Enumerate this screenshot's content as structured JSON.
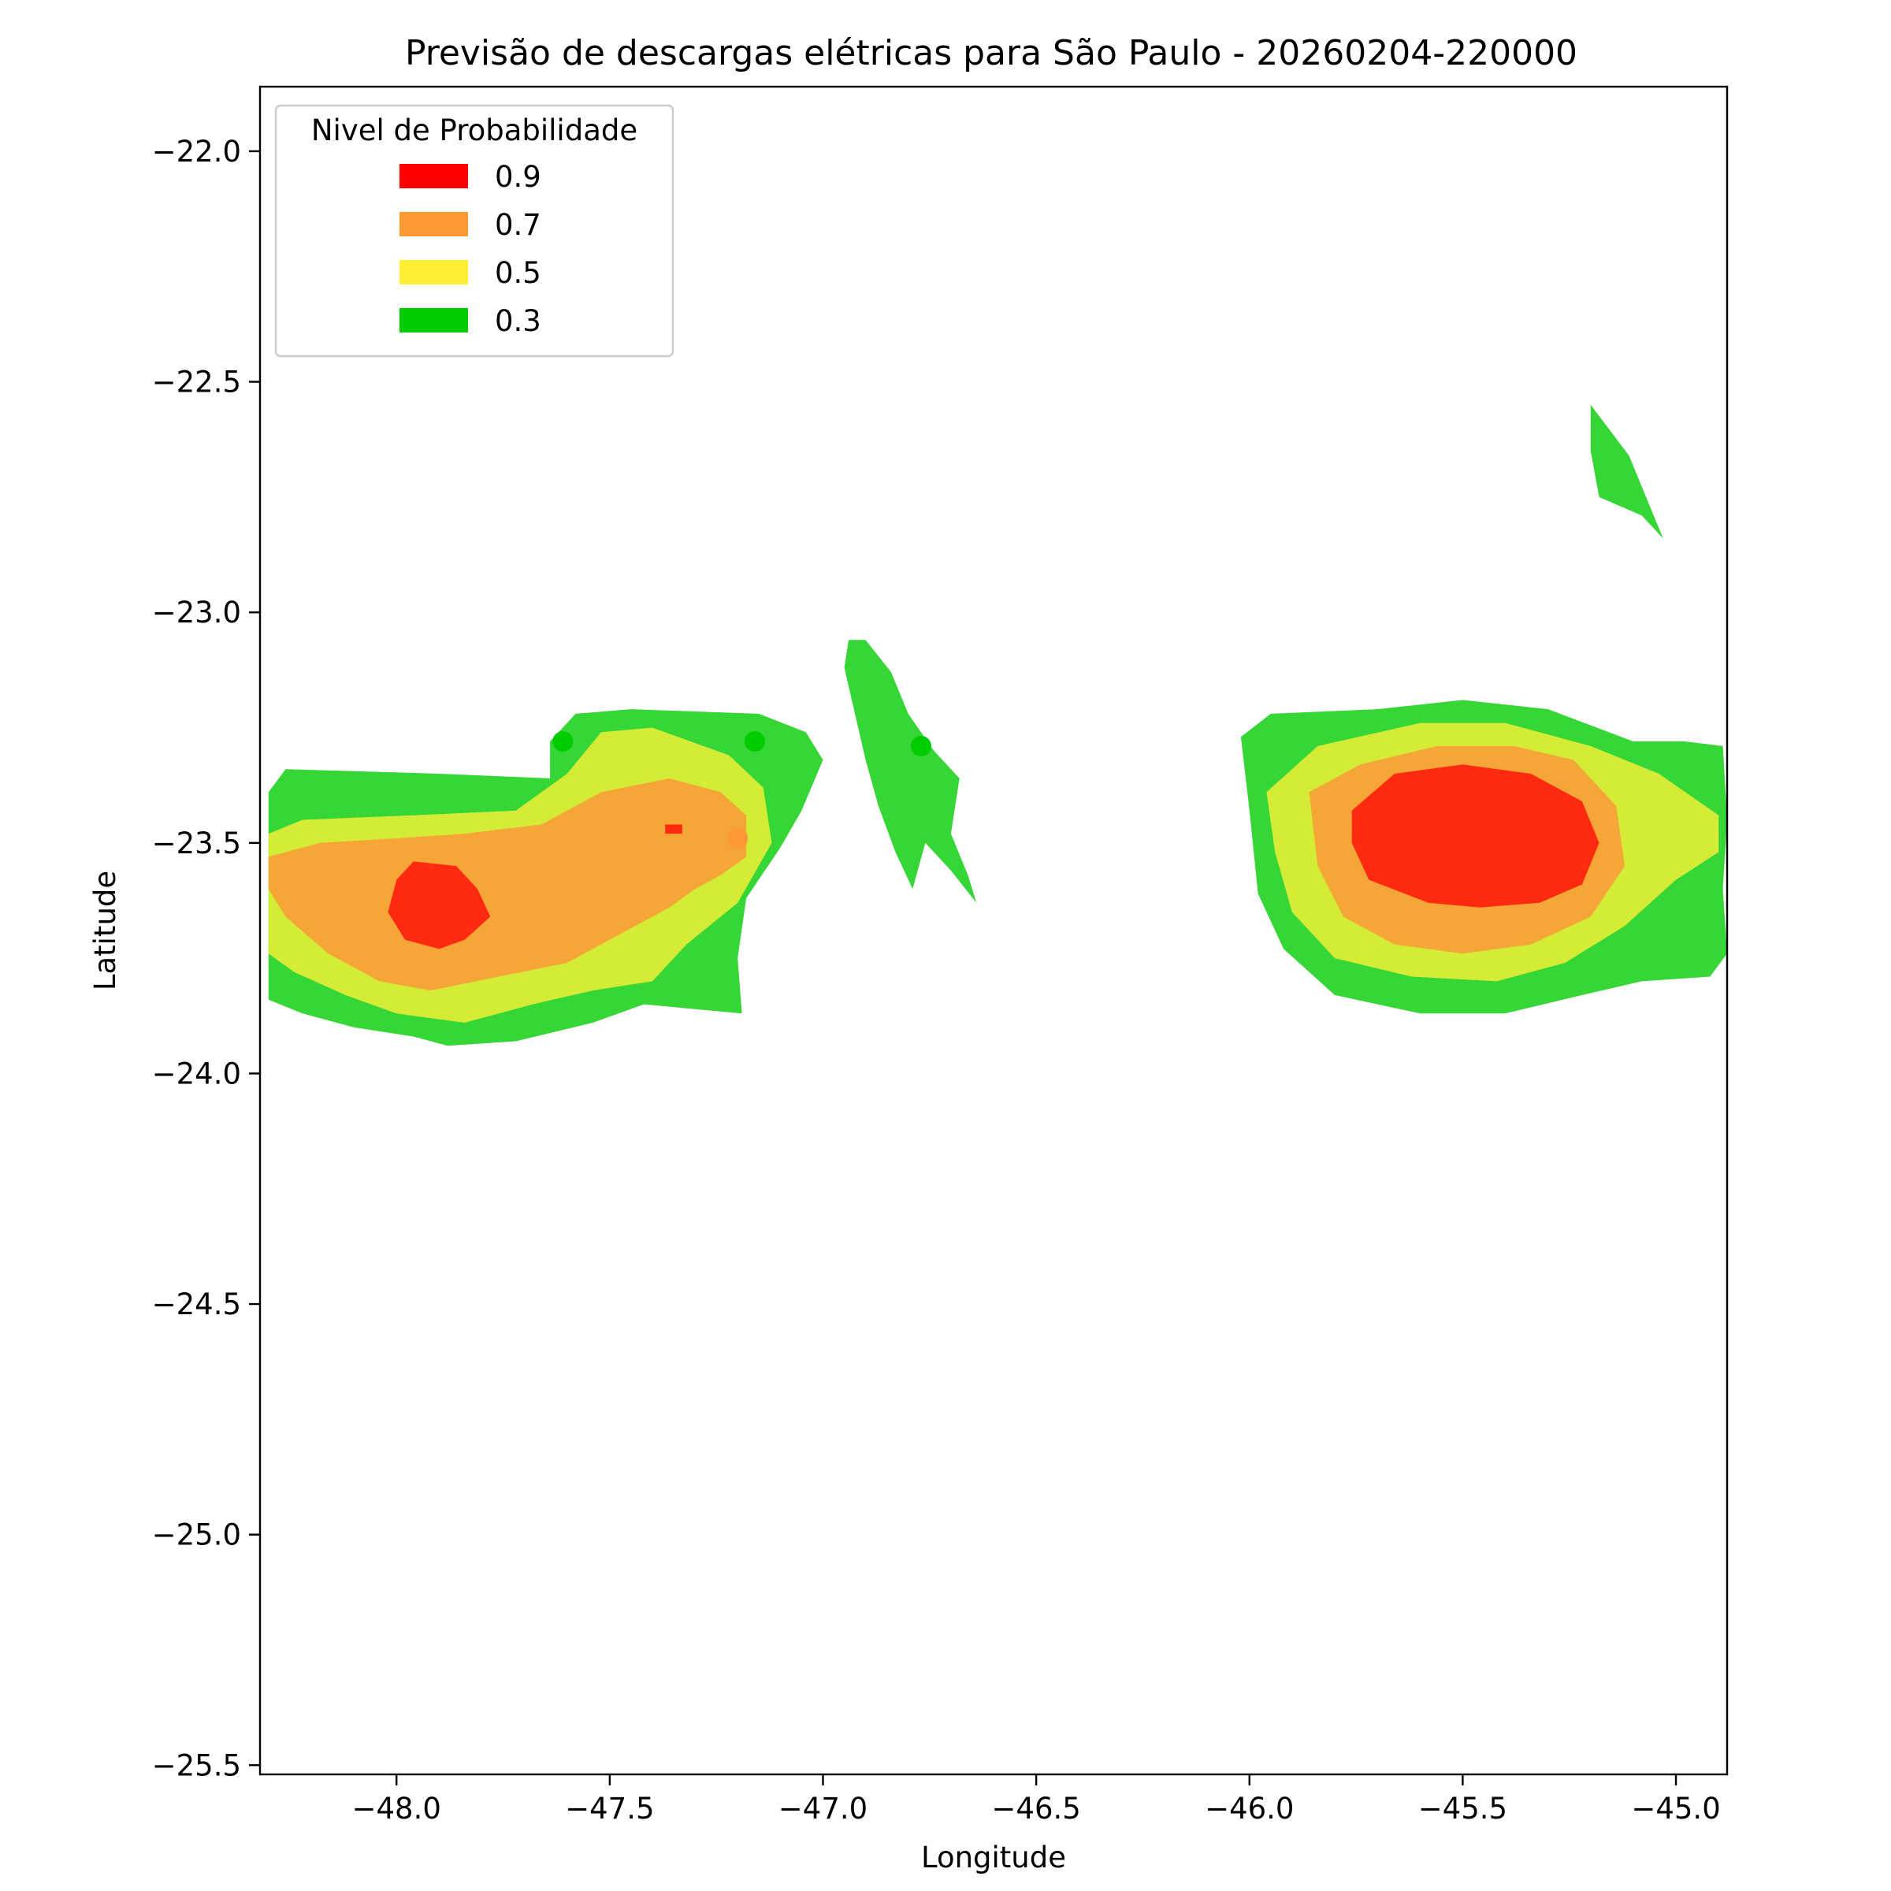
{
  "chart_data": {
    "type": "heatmap",
    "subtype": "filled-contour",
    "title": "Previsão de descargas elétricas para São Paulo - 20260204-220000",
    "xlabel": "Longitude",
    "ylabel": "Latitude",
    "xlim": [
      -48.32,
      -44.88
    ],
    "ylim": [
      -25.52,
      -21.86
    ],
    "x_ticks": [
      {
        "value": -48.0,
        "label": "−48.0"
      },
      {
        "value": -47.5,
        "label": "−47.5"
      },
      {
        "value": -47.0,
        "label": "−47.0"
      },
      {
        "value": -46.5,
        "label": "−46.5"
      },
      {
        "value": -46.0,
        "label": "−46.0"
      },
      {
        "value": -45.5,
        "label": "−45.5"
      },
      {
        "value": -45.0,
        "label": "−45.0"
      }
    ],
    "y_ticks": [
      {
        "value": -22.0,
        "label": "−22.0"
      },
      {
        "value": -22.5,
        "label": "−22.5"
      },
      {
        "value": -23.0,
        "label": "−23.0"
      },
      {
        "value": -23.5,
        "label": "−23.5"
      },
      {
        "value": -24.0,
        "label": "−24.0"
      },
      {
        "value": -24.5,
        "label": "−24.5"
      },
      {
        "value": -25.0,
        "label": "−25.0"
      },
      {
        "value": -25.5,
        "label": "−25.5"
      }
    ],
    "grid": false,
    "legend": {
      "title": "Nivel de Probabilidade",
      "placement": "top-left",
      "entries": [
        {
          "label": "0.9",
          "color": "#ff0000"
        },
        {
          "label": "0.7",
          "color": "#ff9933"
        },
        {
          "label": "0.5",
          "color": "#ffee33"
        },
        {
          "label": "0.3",
          "color": "#00cc00"
        }
      ]
    },
    "fill_colors": {
      "0.3": "#36d636",
      "0.5": "#d4ec36",
      "0.7": "#f5a636",
      "0.9": "#ff2a10"
    },
    "regions": [
      {
        "name": "west-cell",
        "level": "0.3",
        "points": [
          [
            -48.3,
            -23.39
          ],
          [
            -48.26,
            -23.34
          ],
          [
            -47.9,
            -23.35
          ],
          [
            -47.64,
            -23.36
          ],
          [
            -47.64,
            -23.28
          ],
          [
            -47.58,
            -23.22
          ],
          [
            -47.45,
            -23.21
          ],
          [
            -47.15,
            -23.22
          ],
          [
            -47.04,
            -23.26
          ],
          [
            -47.0,
            -23.32
          ],
          [
            -47.05,
            -23.43
          ],
          [
            -47.1,
            -23.51
          ],
          [
            -47.18,
            -23.62
          ],
          [
            -47.2,
            -23.75
          ],
          [
            -47.19,
            -23.87
          ],
          [
            -47.42,
            -23.85
          ],
          [
            -47.54,
            -23.89
          ],
          [
            -47.72,
            -23.93
          ],
          [
            -47.88,
            -23.94
          ],
          [
            -47.96,
            -23.92
          ],
          [
            -48.1,
            -23.9
          ],
          [
            -48.22,
            -23.87
          ],
          [
            -48.3,
            -23.84
          ]
        ]
      },
      {
        "name": "west-cell",
        "level": "0.5",
        "points": [
          [
            -48.3,
            -23.48
          ],
          [
            -48.22,
            -23.45
          ],
          [
            -47.96,
            -23.44
          ],
          [
            -47.72,
            -23.43
          ],
          [
            -47.6,
            -23.35
          ],
          [
            -47.52,
            -23.26
          ],
          [
            -47.4,
            -23.25
          ],
          [
            -47.22,
            -23.31
          ],
          [
            -47.14,
            -23.38
          ],
          [
            -47.12,
            -23.5
          ],
          [
            -47.2,
            -23.63
          ],
          [
            -47.32,
            -23.72
          ],
          [
            -47.4,
            -23.8
          ],
          [
            -47.54,
            -23.82
          ],
          [
            -47.68,
            -23.85
          ],
          [
            -47.84,
            -23.89
          ],
          [
            -48.0,
            -23.87
          ],
          [
            -48.12,
            -23.83
          ],
          [
            -48.24,
            -23.78
          ],
          [
            -48.3,
            -23.74
          ]
        ]
      },
      {
        "name": "west-cell",
        "level": "0.7",
        "points": [
          [
            -48.3,
            -23.53
          ],
          [
            -48.18,
            -23.5
          ],
          [
            -48.0,
            -23.49
          ],
          [
            -47.84,
            -23.48
          ],
          [
            -47.66,
            -23.46
          ],
          [
            -47.52,
            -23.39
          ],
          [
            -47.36,
            -23.36
          ],
          [
            -47.24,
            -23.39
          ],
          [
            -47.18,
            -23.44
          ],
          [
            -47.18,
            -23.53
          ],
          [
            -47.24,
            -23.57
          ],
          [
            -47.3,
            -23.6
          ],
          [
            -47.36,
            -23.64
          ],
          [
            -47.42,
            -23.67
          ],
          [
            -47.5,
            -23.71
          ],
          [
            -47.6,
            -23.76
          ],
          [
            -47.76,
            -23.79
          ],
          [
            -47.92,
            -23.82
          ],
          [
            -48.04,
            -23.8
          ],
          [
            -48.16,
            -23.74
          ],
          [
            -48.26,
            -23.66
          ],
          [
            -48.3,
            -23.6
          ]
        ]
      },
      {
        "name": "west-cell",
        "level": "0.9",
        "points": [
          [
            -47.96,
            -23.54
          ],
          [
            -47.86,
            -23.55
          ],
          [
            -47.81,
            -23.6
          ],
          [
            -47.78,
            -23.66
          ],
          [
            -47.84,
            -23.71
          ],
          [
            -47.9,
            -23.73
          ],
          [
            -47.98,
            -23.71
          ],
          [
            -48.02,
            -23.65
          ],
          [
            -48.0,
            -23.58
          ]
        ]
      },
      {
        "name": "west-cell",
        "level": "0.9",
        "points": [
          [
            -47.37,
            -23.46
          ],
          [
            -47.33,
            -23.46
          ],
          [
            -47.33,
            -23.48
          ],
          [
            -47.37,
            -23.48
          ]
        ]
      },
      {
        "name": "central-strip",
        "level": "0.3",
        "points": [
          [
            -46.94,
            -23.06
          ],
          [
            -46.9,
            -23.06
          ],
          [
            -46.84,
            -23.13
          ],
          [
            -46.8,
            -23.22
          ],
          [
            -46.74,
            -23.3
          ],
          [
            -46.68,
            -23.36
          ],
          [
            -46.7,
            -23.48
          ],
          [
            -46.66,
            -23.57
          ],
          [
            -46.64,
            -23.63
          ],
          [
            -46.7,
            -23.56
          ],
          [
            -46.76,
            -23.5
          ],
          [
            -46.79,
            -23.6
          ],
          [
            -46.83,
            -23.52
          ],
          [
            -46.87,
            -23.42
          ],
          [
            -46.9,
            -23.32
          ],
          [
            -46.93,
            -23.2
          ],
          [
            -46.95,
            -23.12
          ]
        ]
      },
      {
        "name": "east-cell",
        "level": "0.3",
        "points": [
          [
            -46.02,
            -23.27
          ],
          [
            -45.95,
            -23.22
          ],
          [
            -45.7,
            -23.21
          ],
          [
            -45.5,
            -23.19
          ],
          [
            -45.3,
            -23.21
          ],
          [
            -45.1,
            -23.28
          ],
          [
            -44.98,
            -23.28
          ],
          [
            -44.89,
            -23.29
          ],
          [
            -44.88,
            -23.45
          ],
          [
            -44.89,
            -23.6
          ],
          [
            -44.88,
            -23.74
          ],
          [
            -44.92,
            -23.79
          ],
          [
            -45.08,
            -23.8
          ],
          [
            -45.22,
            -23.83
          ],
          [
            -45.4,
            -23.87
          ],
          [
            -45.6,
            -23.87
          ],
          [
            -45.8,
            -23.83
          ],
          [
            -45.92,
            -23.73
          ],
          [
            -45.98,
            -23.61
          ],
          [
            -46.0,
            -23.43
          ]
        ]
      },
      {
        "name": "east-cell",
        "level": "0.5",
        "points": [
          [
            -45.96,
            -23.39
          ],
          [
            -45.84,
            -23.29
          ],
          [
            -45.6,
            -23.24
          ],
          [
            -45.4,
            -23.24
          ],
          [
            -45.2,
            -23.29
          ],
          [
            -45.04,
            -23.35
          ],
          [
            -44.9,
            -23.44
          ],
          [
            -44.9,
            -23.52
          ],
          [
            -45.0,
            -23.58
          ],
          [
            -45.12,
            -23.68
          ],
          [
            -45.26,
            -23.76
          ],
          [
            -45.42,
            -23.8
          ],
          [
            -45.62,
            -23.79
          ],
          [
            -45.8,
            -23.75
          ],
          [
            -45.9,
            -23.65
          ],
          [
            -45.94,
            -23.52
          ]
        ]
      },
      {
        "name": "east-cell",
        "level": "0.7",
        "points": [
          [
            -45.86,
            -23.39
          ],
          [
            -45.74,
            -23.33
          ],
          [
            -45.56,
            -23.29
          ],
          [
            -45.38,
            -23.29
          ],
          [
            -45.24,
            -23.32
          ],
          [
            -45.14,
            -23.42
          ],
          [
            -45.12,
            -23.55
          ],
          [
            -45.2,
            -23.66
          ],
          [
            -45.34,
            -23.72
          ],
          [
            -45.5,
            -23.74
          ],
          [
            -45.66,
            -23.72
          ],
          [
            -45.78,
            -23.66
          ],
          [
            -45.84,
            -23.55
          ]
        ]
      },
      {
        "name": "east-cell",
        "level": "0.9",
        "points": [
          [
            -45.76,
            -23.43
          ],
          [
            -45.66,
            -23.35
          ],
          [
            -45.5,
            -23.33
          ],
          [
            -45.34,
            -23.35
          ],
          [
            -45.22,
            -23.41
          ],
          [
            -45.18,
            -23.5
          ],
          [
            -45.22,
            -23.59
          ],
          [
            -45.32,
            -23.63
          ],
          [
            -45.46,
            -23.64
          ],
          [
            -45.58,
            -23.63
          ],
          [
            -45.72,
            -23.58
          ],
          [
            -45.76,
            -23.5
          ]
        ]
      },
      {
        "name": "northeast-streak",
        "level": "0.3",
        "points": [
          [
            -45.2,
            -22.55
          ],
          [
            -45.2,
            -22.65
          ],
          [
            -45.18,
            -22.75
          ],
          [
            -45.08,
            -22.79
          ],
          [
            -45.03,
            -22.84
          ],
          [
            -45.11,
            -22.66
          ]
        ]
      }
    ],
    "markers": [
      {
        "lon": -47.61,
        "lat": -23.28,
        "color": "#00cc00"
      },
      {
        "lon": -47.16,
        "lat": -23.28,
        "color": "#00cc00"
      },
      {
        "lon": -46.77,
        "lat": -23.29,
        "color": "#00cc00"
      },
      {
        "lon": -47.2,
        "lat": -23.49,
        "color": "#ff9933"
      }
    ]
  }
}
